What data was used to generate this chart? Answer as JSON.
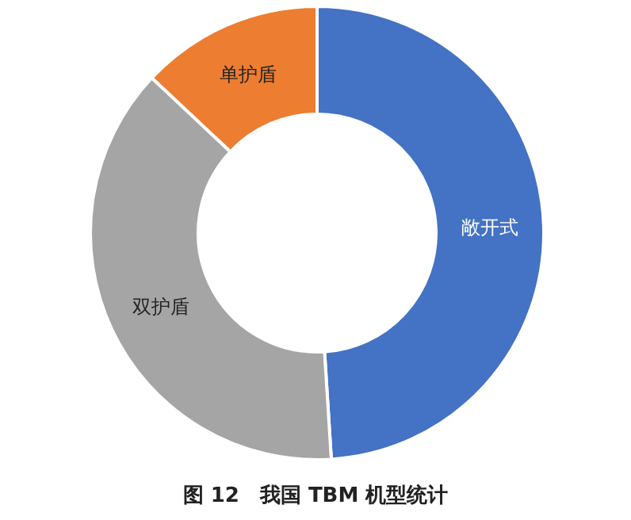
{
  "chart_data": {
    "type": "donut",
    "title": "图 12　我国 TBM 机型统计",
    "categories": [
      "敞开式",
      "双护盾",
      "单护盾"
    ],
    "values": [
      49,
      38,
      13
    ],
    "colors": [
      "#4472c4",
      "#a5a5a5",
      "#ed7d31"
    ]
  }
}
